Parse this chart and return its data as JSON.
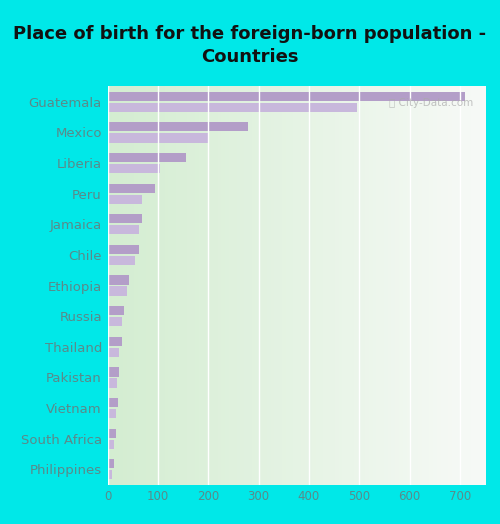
{
  "title": "Place of birth for the foreign-born population -\nCountries",
  "categories": [
    "Guatemala",
    "Mexico",
    "Liberia",
    "Peru",
    "Jamaica",
    "Chile",
    "Ethiopia",
    "Russia",
    "Thailand",
    "Pakistan",
    "Vietnam",
    "South Africa",
    "Philippines"
  ],
  "values1": [
    710,
    280,
    155,
    95,
    68,
    62,
    42,
    32,
    28,
    22,
    20,
    17,
    12
  ],
  "values2": [
    495,
    200,
    105,
    68,
    62,
    55,
    38,
    28,
    22,
    18,
    16,
    13,
    9
  ],
  "bar_color1": "#b39ec8",
  "bar_color2": "#c8b8dc",
  "bg_gradient_left": "#dff0e0",
  "bg_gradient_right": "#f5f5f0",
  "outer_background": "#00e8e8",
  "tick_color": "#5a8a8a",
  "title_color": "#111111",
  "xlim": [
    0,
    750
  ],
  "xticks": [
    0,
    100,
    200,
    300,
    400,
    500,
    600,
    700
  ],
  "title_fontsize": 13,
  "label_fontsize": 9.5
}
